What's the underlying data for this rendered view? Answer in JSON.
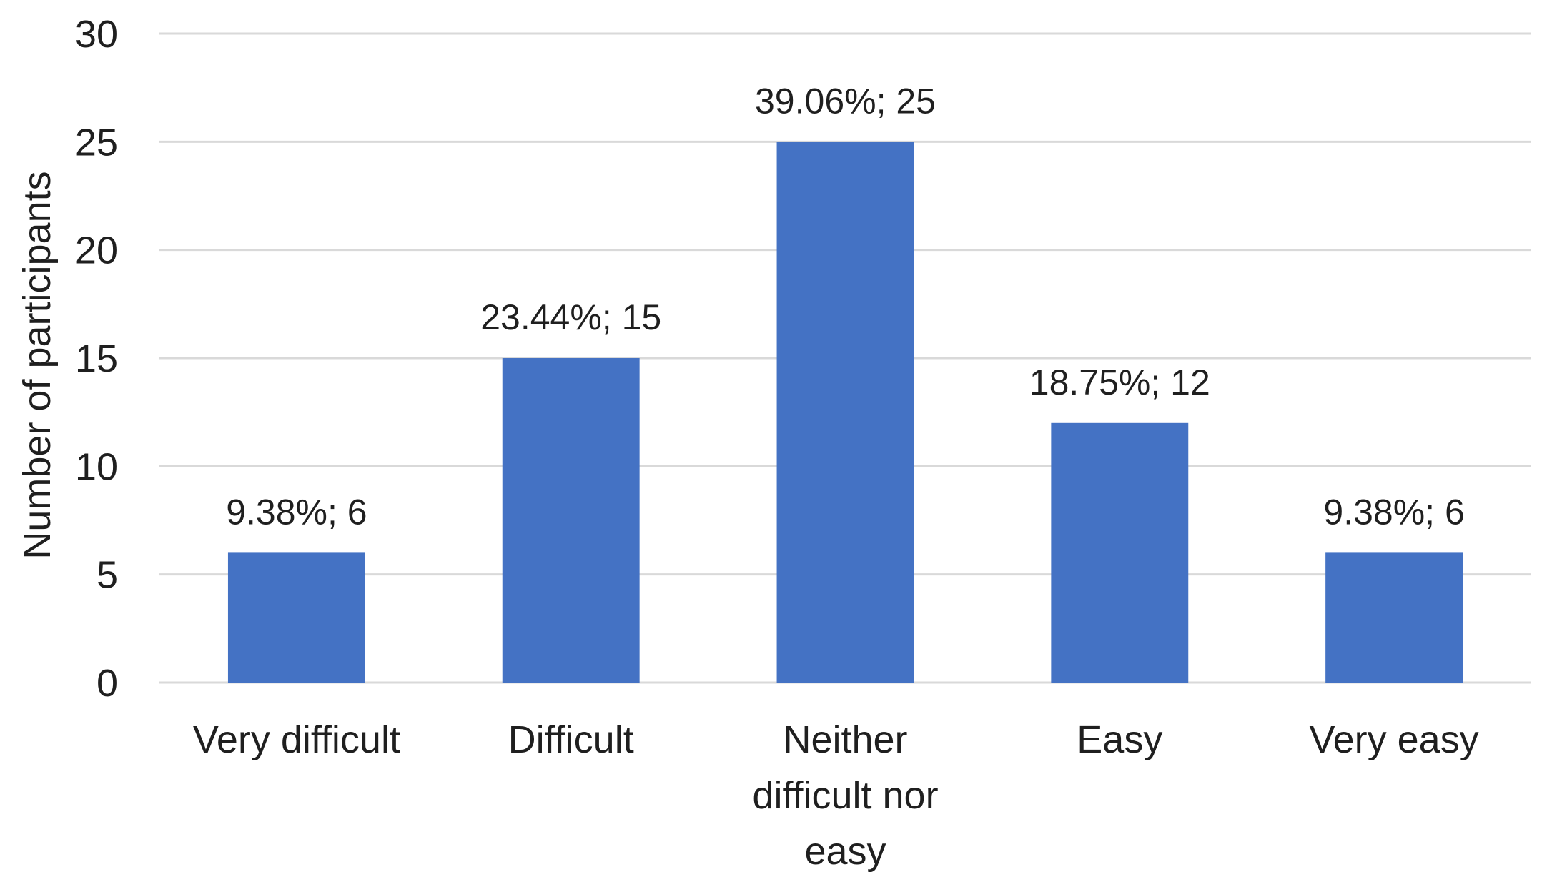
{
  "chart_data": {
    "type": "bar",
    "categories": [
      [
        "Very difficult"
      ],
      [
        "Difficult"
      ],
      [
        "Neither",
        "difficult nor",
        "easy"
      ],
      [
        "Easy"
      ],
      [
        "Very easy"
      ]
    ],
    "values": [
      6,
      15,
      25,
      12,
      6
    ],
    "data_labels": [
      "9.38%; 6",
      "23.44%; 15",
      "39.06%; 25",
      "18.75%; 12",
      "9.38%; 6"
    ],
    "title": "",
    "xlabel": "",
    "ylabel": "Number of participants",
    "ylim": [
      0,
      30
    ],
    "yticks": [
      0,
      5,
      10,
      15,
      20,
      25,
      30
    ],
    "grid": true,
    "legend": "none",
    "bar_color": "#4472C4",
    "grid_color": "#d9d9d9"
  }
}
